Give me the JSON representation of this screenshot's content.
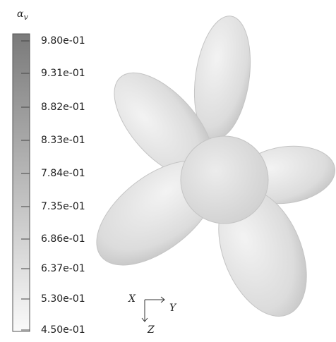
{
  "legend": {
    "title": "α",
    "title_sub": "v",
    "labels": [
      "9.80e-01",
      "9.31e-01",
      "8.82e-01",
      "8.33e-01",
      "7.84e-01",
      "7.35e-01",
      "6.86e-01",
      "6.37e-01",
      "5.30e-01",
      "4.50e-01"
    ]
  },
  "triad": {
    "x": "X",
    "y": "Y",
    "z": "Z"
  }
}
